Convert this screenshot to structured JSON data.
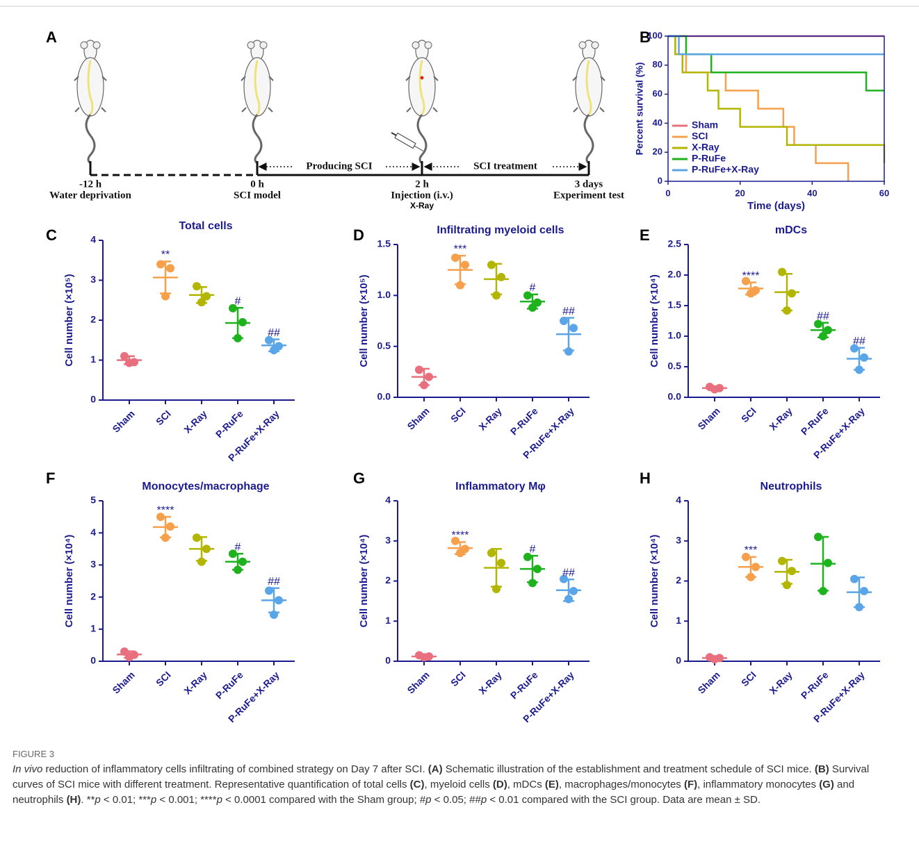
{
  "panel_a": {
    "label": "A",
    "timepoints": [
      {
        "time": "-12 h",
        "event": "Water deprivation"
      },
      {
        "time": "0 h",
        "event": "SCI model"
      },
      {
        "time": "2 h",
        "event": "Injection (i.v.)",
        "note": "X-Ray"
      },
      {
        "time": "3 days",
        "event": "Experiment test"
      }
    ],
    "phases": [
      "Producing SCI",
      "SCI treatment"
    ]
  },
  "chart_data": [
    {
      "type": "survival",
      "label": "B",
      "xlabel": "Time (days)",
      "ylabel": "Percent survival (%)",
      "xlim": [
        0,
        60
      ],
      "xticks": [
        0,
        20,
        40,
        60
      ],
      "ylim": [
        0,
        100
      ],
      "yticks": [
        0,
        20,
        40,
        60,
        80,
        100
      ],
      "legend": "lower left",
      "series": [
        {
          "name": "Sham",
          "color": "#e8707e",
          "x": [
            0,
            60
          ],
          "values": [
            100,
            100
          ]
        },
        {
          "name": "SCI",
          "color": "#f7a04c",
          "x": [
            0,
            2,
            5,
            16,
            25,
            32,
            35,
            41,
            50
          ],
          "values": [
            100,
            87.5,
            75,
            62.5,
            50,
            37.5,
            25,
            12.5,
            0
          ]
        },
        {
          "name": "X-Ray",
          "color": "#b2b600",
          "x": [
            0,
            2,
            4,
            11,
            14,
            20,
            33,
            60
          ],
          "values": [
            100,
            87.5,
            75,
            62.5,
            50,
            37.5,
            25,
            12.5
          ]
        },
        {
          "name": "P-RuFe",
          "color": "#1fb21f",
          "x": [
            0,
            5,
            12,
            55,
            60
          ],
          "values": [
            100,
            87.5,
            75,
            62.5,
            62.5
          ]
        },
        {
          "name": "P-RuFe+X-Ray",
          "color": "#5aa5e8",
          "x": [
            0,
            3,
            60
          ],
          "values": [
            100,
            87.5,
            87.5
          ]
        }
      ]
    },
    {
      "type": "dot",
      "label": "C",
      "title": "Total cells",
      "ylabel": "Cell number (×10⁵)",
      "ylim": [
        0,
        4
      ],
      "yticks": [
        0,
        1,
        2,
        3,
        4
      ],
      "categories": [
        "Sham",
        "SCI",
        "X-Ray",
        "P-RuFe",
        "P-RuFe+X-Ray"
      ],
      "colors": [
        "#e8707e",
        "#f7a04c",
        "#b2b600",
        "#1fb21f",
        "#5aa5e8"
      ],
      "points": [
        [
          1.1,
          0.95,
          0.93
        ],
        [
          3.4,
          3.3,
          2.6
        ],
        [
          2.85,
          2.6,
          2.45
        ],
        [
          2.3,
          1.95,
          1.55
        ],
        [
          1.5,
          1.35,
          1.25
        ]
      ],
      "means": [
        1.0,
        3.07,
        2.63,
        1.93,
        1.37
      ],
      "sd": [
        0.1,
        0.4,
        0.2,
        0.38,
        0.15
      ],
      "annotations": [
        null,
        "**",
        null,
        "#",
        "##"
      ]
    },
    {
      "type": "dot",
      "label": "D",
      "title": "Infiltrating myeloid cells",
      "ylabel": "Cell number (×10⁵)",
      "ylim": [
        0,
        1.5
      ],
      "yticks": [
        {
          "value": 0,
          "label": "0.0"
        },
        {
          "value": 0.5,
          "label": "0.5"
        },
        {
          "value": 1,
          "label": "1.0"
        },
        {
          "value": 1.5,
          "label": "1.5"
        }
      ],
      "categories": [
        "Sham",
        "SCI",
        "X-Ray",
        "P-RuFe",
        "P-RuFe+X-Ray"
      ],
      "colors": [
        "#e8707e",
        "#f7a04c",
        "#b2b600",
        "#1fb21f",
        "#5aa5e8"
      ],
      "points": [
        [
          0.27,
          0.2,
          0.12
        ],
        [
          1.37,
          1.3,
          1.1
        ],
        [
          1.3,
          1.18,
          1.0
        ],
        [
          1.0,
          0.93,
          0.88
        ],
        [
          0.75,
          0.68,
          0.45
        ]
      ],
      "means": [
        0.2,
        1.25,
        1.16,
        0.94,
        0.62
      ],
      "sd": [
        0.08,
        0.14,
        0.15,
        0.07,
        0.16
      ],
      "annotations": [
        null,
        "***",
        null,
        "#",
        "##"
      ]
    },
    {
      "type": "dot",
      "label": "E",
      "title": "mDCs",
      "ylabel": "Cell number (×10⁴)",
      "ylim": [
        0,
        2.5
      ],
      "yticks": [
        {
          "value": 0,
          "label": "0.0"
        },
        {
          "value": 0.5,
          "label": "0.5"
        },
        {
          "value": 1,
          "label": "1.0"
        },
        {
          "value": 1.5,
          "label": "1.5"
        },
        {
          "value": 2,
          "label": "2.0"
        },
        {
          "value": 2.5,
          "label": "2.5"
        }
      ],
      "categories": [
        "Sham",
        "SCI",
        "X-Ray",
        "P-RuFe",
        "P-RuFe+X-Ray"
      ],
      "colors": [
        "#e8707e",
        "#f7a04c",
        "#b2b600",
        "#1fb21f",
        "#5aa5e8"
      ],
      "points": [
        [
          0.17,
          0.15,
          0.13
        ],
        [
          1.9,
          1.75,
          1.7
        ],
        [
          2.05,
          1.7,
          1.42
        ],
        [
          1.2,
          1.1,
          1.0
        ],
        [
          0.8,
          0.65,
          0.45
        ]
      ],
      "means": [
        0.15,
        1.78,
        1.72,
        1.1,
        0.63
      ],
      "sd": [
        0.02,
        0.1,
        0.3,
        0.12,
        0.18
      ],
      "annotations": [
        null,
        "****",
        null,
        "##",
        "##"
      ]
    },
    {
      "type": "dot",
      "label": "F",
      "title": "Monocytes/macrophage",
      "ylabel": "Cell number (×10⁴)",
      "ylim": [
        0,
        5
      ],
      "yticks": [
        0,
        1,
        2,
        3,
        4,
        5
      ],
      "categories": [
        "Sham",
        "SCI",
        "X-Ray",
        "P-RuFe",
        "P-RuFe+X-Ray"
      ],
      "colors": [
        "#e8707e",
        "#f7a04c",
        "#b2b600",
        "#1fb21f",
        "#5aa5e8"
      ],
      "points": [
        [
          0.3,
          0.2,
          0.13
        ],
        [
          4.5,
          4.2,
          3.85
        ],
        [
          3.85,
          3.5,
          3.1
        ],
        [
          3.35,
          3.1,
          2.85
        ],
        [
          2.2,
          1.9,
          1.45
        ]
      ],
      "means": [
        0.21,
        4.18,
        3.5,
        3.1,
        1.9
      ],
      "sd": [
        0.1,
        0.32,
        0.37,
        0.25,
        0.38
      ],
      "annotations": [
        null,
        "****",
        null,
        "#",
        "##"
      ]
    },
    {
      "type": "dot",
      "label": "G",
      "title": "Inflammatory Mφ",
      "ylabel": "Cell number (×10⁴)",
      "ylim": [
        0,
        4
      ],
      "yticks": [
        0,
        1,
        2,
        3,
        4
      ],
      "categories": [
        "Sham",
        "SCI",
        "X-Ray",
        "P-RuFe",
        "P-RuFe+X-Ray"
      ],
      "colors": [
        "#e8707e",
        "#f7a04c",
        "#b2b600",
        "#1fb21f",
        "#5aa5e8"
      ],
      "points": [
        [
          0.15,
          0.12,
          0.1
        ],
        [
          3.0,
          2.8,
          2.7
        ],
        [
          2.7,
          2.45,
          1.8
        ],
        [
          2.6,
          2.3,
          1.95
        ],
        [
          2.05,
          1.75,
          1.55
        ]
      ],
      "means": [
        0.12,
        2.82,
        2.33,
        2.3,
        1.77
      ],
      "sd": [
        0.03,
        0.15,
        0.47,
        0.33,
        0.27
      ],
      "annotations": [
        null,
        "****",
        null,
        "#",
        "##"
      ]
    },
    {
      "type": "dot",
      "label": "H",
      "title": "Neutrophils",
      "ylabel": "Cell number (×10⁴)",
      "ylim": [
        0,
        4
      ],
      "yticks": [
        0,
        1,
        2,
        3,
        4
      ],
      "categories": [
        "Sham",
        "SCI",
        "X-Ray",
        "P-RuFe",
        "P-RuFe+X-Ray"
      ],
      "colors": [
        "#e8707e",
        "#f7a04c",
        "#b2b600",
        "#1fb21f",
        "#5aa5e8"
      ],
      "points": [
        [
          0.1,
          0.08,
          0.05
        ],
        [
          2.6,
          2.35,
          2.1
        ],
        [
          2.5,
          2.25,
          1.9
        ],
        [
          3.1,
          2.45,
          1.75
        ],
        [
          2.05,
          1.75,
          1.35
        ]
      ],
      "means": [
        0.08,
        2.35,
        2.23,
        2.43,
        1.72
      ],
      "sd": [
        0.03,
        0.25,
        0.3,
        0.67,
        0.37
      ],
      "annotations": [
        null,
        "***",
        null,
        null,
        null
      ]
    }
  ],
  "caption": {
    "label": "FIGURE 3",
    "parts": [
      "In vivo",
      " reduction of inflammatory cells infiltrating of combined strategy on Day 7 after SCI. ",
      "(A)",
      " Schematic illustration of the establishment and treatment schedule of SCI mice. ",
      "(B)",
      " Survival curves of SCI mice with different treatment. Representative quantification of total cells ",
      "(C)",
      ", myeloid cells ",
      "(D)",
      ", mDCs ",
      "(E)",
      ", macrophages/monocytes ",
      "(F)",
      ", inflammatory monocytes ",
      "(G)",
      " and neutrophils ",
      "(H)",
      ". **",
      "p",
      " < 0.01; ***",
      "p",
      " < 0.001; ****",
      "p",
      " < 0.0001 compared with the Sham group; #",
      "p",
      " < 0.05; ##",
      "p",
      " < 0.01 compared with the SCI group. Data are mean ± SD."
    ]
  }
}
